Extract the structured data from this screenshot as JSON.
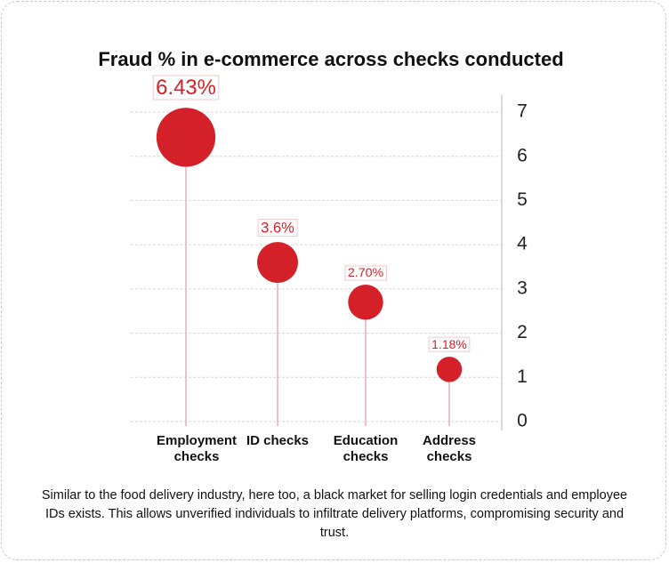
{
  "chart_data": {
    "type": "lollipop",
    "title": "Fraud % in e-commerce across checks conducted",
    "categories": [
      "Employment checks",
      "ID checks",
      "Education checks",
      "Address checks"
    ],
    "values": [
      6.43,
      3.6,
      2.7,
      1.18
    ],
    "value_labels": [
      "6.43%",
      "3.6%",
      "2.70%",
      "1.18%"
    ],
    "color": "#d42028",
    "ylim": [
      0,
      7
    ],
    "yticks": [
      0,
      1,
      2,
      3,
      4,
      5,
      6,
      7
    ],
    "grid": true,
    "y_axis_side": "right"
  },
  "caption": "Similar to the food delivery industry, here too, a black market for selling login credentials and employee IDs exists. This allows unverified individuals to infiltrate delivery platforms, compromising security and trust."
}
